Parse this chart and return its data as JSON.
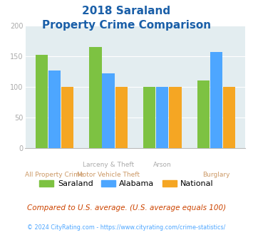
{
  "title_line1": "2018 Saraland",
  "title_line2": "Property Crime Comparison",
  "saraland": [
    152,
    165,
    100,
    111
  ],
  "alabama": [
    127,
    122,
    100,
    157
  ],
  "national": [
    100,
    100,
    100,
    100
  ],
  "colors": {
    "saraland": "#7dc242",
    "alabama": "#4da6ff",
    "national": "#f5a623"
  },
  "ylim": [
    0,
    200
  ],
  "yticks": [
    0,
    50,
    100,
    150,
    200
  ],
  "footnote": "Compared to U.S. average. (U.S. average equals 100)",
  "copyright": "© 2024 CityRating.com - https://www.cityrating.com/crime-statistics/",
  "bg_color": "#e3edf0",
  "title_color": "#1a5fa8",
  "footnote_color": "#cc4400",
  "copyright_color": "#4da6ff",
  "tick_color": "#aaaaaa",
  "label_top_color": "#aaaaaa",
  "label_bot_color": "#cc9966",
  "cat_labels_top": [
    "",
    "Larceny & Theft",
    "Arson",
    ""
  ],
  "cat_labels_bot": [
    "All Property Crime",
    "Motor Vehicle Theft",
    "",
    "Burglary"
  ]
}
